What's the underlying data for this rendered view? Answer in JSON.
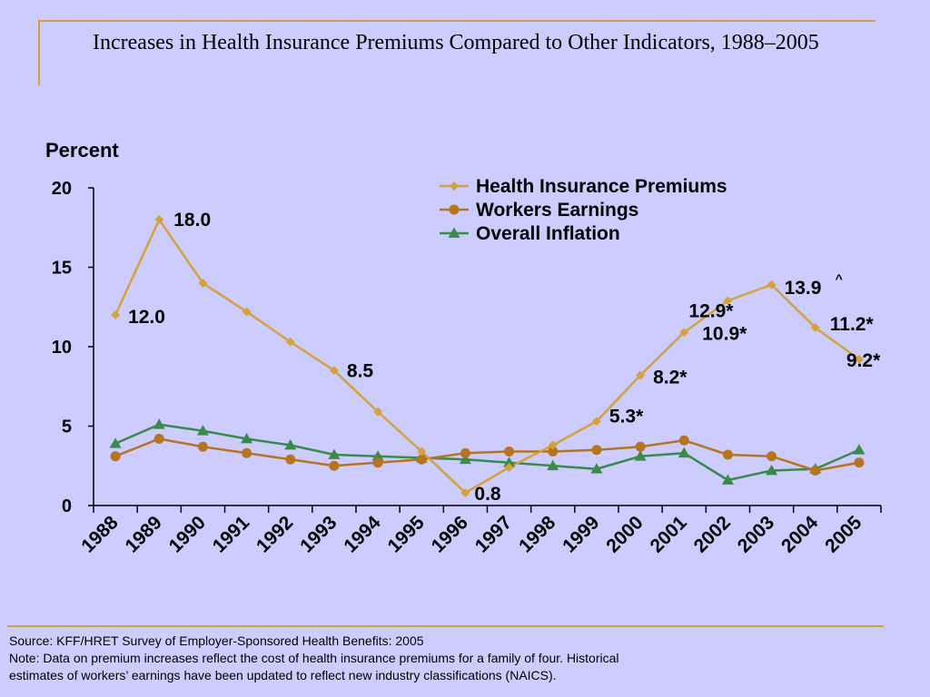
{
  "title": "Increases in Health Insurance Premiums Compared to Other Indicators, 1988–2005",
  "colors": {
    "background": "#ccccff",
    "rule": "#d4a23a",
    "premiums": "#d4a23a",
    "earnings": "#b5741e",
    "inflation": "#3a8a4a"
  },
  "chart_data": {
    "type": "line",
    "ylabel": "Percent",
    "ylim": [
      0,
      20
    ],
    "yticks": [
      0,
      5,
      10,
      15,
      20
    ],
    "categories": [
      "1988",
      "1989",
      "1990",
      "1991",
      "1992",
      "1993",
      "1994",
      "1995",
      "1996",
      "1997",
      "1998",
      "1999",
      "2000",
      "2001",
      "2002",
      "2003",
      "2004",
      "2005"
    ],
    "legend_position": "top-right",
    "series": [
      {
        "name": "Health Insurance Premiums",
        "marker": "diamond",
        "values": [
          12.0,
          18.0,
          14.0,
          12.2,
          10.3,
          8.5,
          5.9,
          3.4,
          0.8,
          2.4,
          3.8,
          5.3,
          8.2,
          10.9,
          12.9,
          13.9,
          11.2,
          9.2
        ]
      },
      {
        "name": "Workers Earnings",
        "marker": "circle",
        "values": [
          3.1,
          4.2,
          3.7,
          3.3,
          2.9,
          2.5,
          2.7,
          2.9,
          3.3,
          3.4,
          3.4,
          3.5,
          3.7,
          4.1,
          3.2,
          3.1,
          2.2,
          2.7
        ]
      },
      {
        "name": "Overall Inflation",
        "marker": "triangle",
        "values": [
          3.9,
          5.1,
          4.7,
          4.2,
          3.8,
          3.2,
          3.1,
          3.0,
          2.9,
          2.7,
          2.5,
          2.3,
          3.1,
          3.3,
          1.6,
          2.2,
          2.3,
          3.5
        ]
      }
    ],
    "annotations": [
      {
        "index": 0,
        "text": "12.0"
      },
      {
        "index": 1,
        "text": "18.0"
      },
      {
        "index": 5,
        "text": "8.5"
      },
      {
        "index": 8,
        "text": "0.8"
      },
      {
        "index": 11,
        "text": "5.3*"
      },
      {
        "index": 12,
        "text": "8.2*"
      },
      {
        "index": 13,
        "text": "10.9*"
      },
      {
        "index": 14,
        "text": "12.9*"
      },
      {
        "index": 15,
        "text": "13.9"
      },
      {
        "index": 16,
        "text": "11.2*"
      },
      {
        "index": 17,
        "text": "9.2*"
      }
    ],
    "annotation_superscript": "^"
  },
  "footer": {
    "source": "Source:  KFF/HRET Survey of Employer-Sponsored Health Benefits: 2005",
    "note_line1": "Note: Data on premium increases reflect the cost of health insurance premiums for a family of four. Historical",
    "note_line2": "estimates of workers’ earnings have been updated to reflect new industry classifications (NAICS)."
  }
}
